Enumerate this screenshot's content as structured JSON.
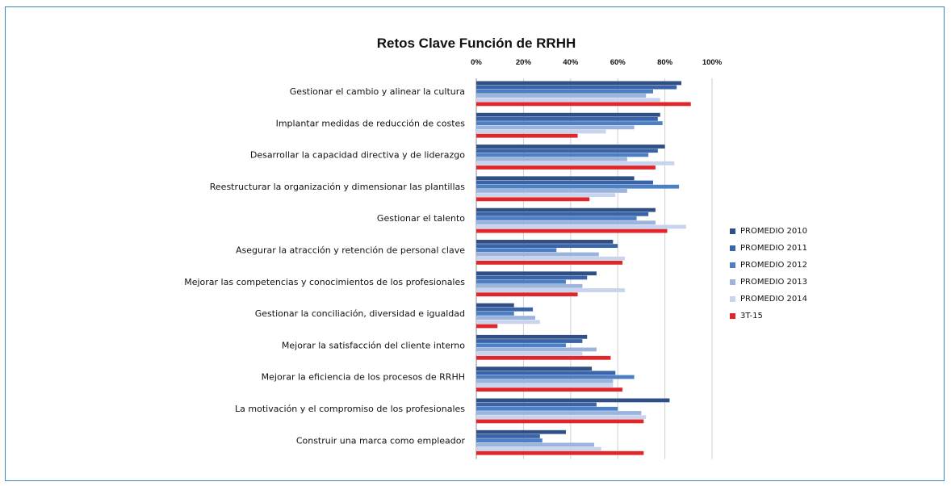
{
  "chart_data": {
    "type": "bar",
    "orientation": "horizontal",
    "title": "Retos Clave Función de RRHH",
    "xlim": [
      0,
      100
    ],
    "x_ticks": [
      "0%",
      "20%",
      "40%",
      "60%",
      "80%",
      "100%"
    ],
    "grid": true,
    "legend_position": "right",
    "categories": [
      "Gestionar el cambio y alinear la cultura",
      "Implantar medidas de reducción de costes",
      "Desarrollar la capacidad directiva y de liderazgo",
      "Reestructurar la organización y dimensionar las plantillas",
      "Gestionar el talento",
      "Asegurar la atracción y retención de personal clave",
      "Mejorar las competencias y conocimientos de los profesionales",
      "Gestionar la conciliación, diversidad e igualdad",
      "Mejorar la satisfacción del cliente interno",
      "Mejorar la eficiencia de los procesos de RRHH",
      "La motivación y el compromiso de los profesionales",
      "Construir una marca como empleador"
    ],
    "series": [
      {
        "name": "PROMEDIO 2010",
        "color": "#2f4f86",
        "values": [
          87,
          78,
          80,
          67,
          76,
          58,
          51,
          16,
          47,
          49,
          82,
          38
        ]
      },
      {
        "name": "PROMEDIO 2011",
        "color": "#3a64a8",
        "values": [
          85,
          77,
          77,
          75,
          73,
          60,
          47,
          24,
          45,
          59,
          51,
          27
        ]
      },
      {
        "name": "PROMEDIO 2012",
        "color": "#4d7fc4",
        "values": [
          75,
          79,
          73,
          86,
          68,
          34,
          38,
          16,
          38,
          67,
          60,
          28
        ]
      },
      {
        "name": "PROMEDIO 2013",
        "color": "#9cb4dc",
        "values": [
          72,
          67,
          64,
          64,
          76,
          52,
          45,
          25,
          51,
          58,
          70,
          50
        ]
      },
      {
        "name": "PROMEDIO 2014",
        "color": "#c8d4ee",
        "values": [
          78,
          55,
          84,
          59,
          89,
          63,
          63,
          27,
          45,
          58,
          72,
          53
        ]
      },
      {
        "name": "3T-15",
        "color": "#e0262a",
        "values": [
          91,
          43,
          76,
          48,
          81,
          62,
          43,
          9,
          57,
          62,
          71,
          71
        ]
      }
    ]
  }
}
